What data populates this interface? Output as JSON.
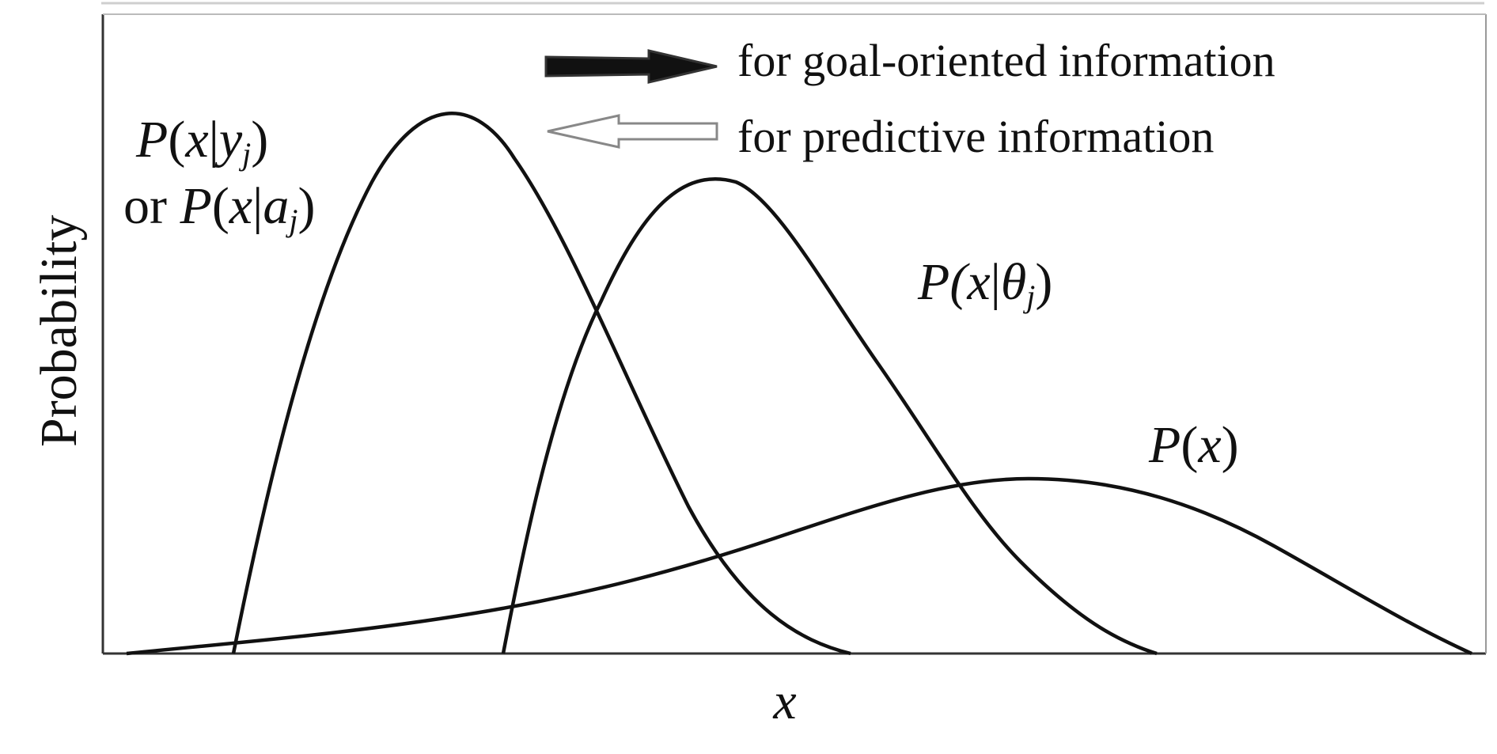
{
  "axes": {
    "y_label": "Probability",
    "x_label": "x"
  },
  "legend": {
    "items": [
      {
        "text": "for goal-oriented information",
        "arrow": "solid-black-arrow"
      },
      {
        "text": "for predictive information",
        "arrow": "hollow-gray-arrow"
      }
    ]
  },
  "curves": {
    "conditional_y": {
      "line1": {
        "p": "P",
        "open": "(",
        "x": "x",
        "bar": "|",
        "var": "y",
        "sub": "j",
        "close": ")"
      },
      "line2": {
        "prefix": "or ",
        "p": "P",
        "open": "(",
        "x": "x",
        "bar": "|",
        "var": "a",
        "sub": "j",
        "close": ")"
      }
    },
    "conditional_theta": {
      "p": "P",
      "open": "(",
      "x": "x",
      "bar": "|",
      "var": "θ",
      "sub": "j",
      "close": ")"
    },
    "marginal": {
      "p": "P",
      "open": "(",
      "x": "x",
      "close": ")"
    }
  },
  "colors": {
    "line": "#111111",
    "frame": "#555555",
    "hollow_arrow": "#888888"
  }
}
